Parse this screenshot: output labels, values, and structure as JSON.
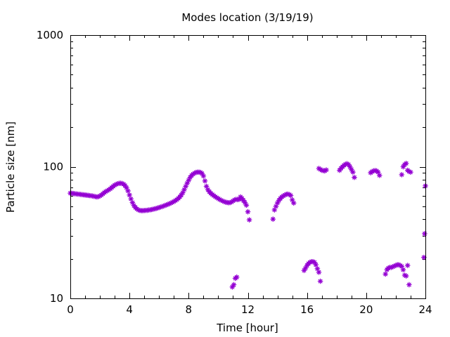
{
  "chart_data": {
    "type": "scatter",
    "title": "Modes location (3/19/19)",
    "xlabel": "Time [hour]",
    "ylabel": "Particle size [nm]",
    "xlim": [
      0,
      24
    ],
    "ylim": [
      10,
      1000
    ],
    "y_scale": "log",
    "x_ticks": [
      0,
      4,
      8,
      12,
      16,
      20,
      24
    ],
    "x_tick_labels": [
      "0",
      "4",
      "8",
      "12",
      "16",
      "20",
      "24"
    ],
    "y_ticks": [
      10,
      100,
      1000
    ],
    "y_tick_labels": [
      "10",
      "100",
      "1000"
    ],
    "marker": "star",
    "color": "#9400d3",
    "grid": false,
    "series": [
      {
        "values": [
          [
            0.0,
            63
          ],
          [
            0.1,
            62.8
          ],
          [
            0.2,
            62.6
          ],
          [
            0.3,
            62.4
          ],
          [
            0.4,
            62.2
          ],
          [
            0.5,
            62
          ],
          [
            0.6,
            61.8
          ],
          [
            0.7,
            61.6
          ],
          [
            0.8,
            61.4
          ],
          [
            0.9,
            61.2
          ],
          [
            1.0,
            61
          ],
          [
            1.1,
            60.8
          ],
          [
            1.2,
            60.6
          ],
          [
            1.3,
            60.4
          ],
          [
            1.4,
            60.2
          ],
          [
            1.5,
            59.9
          ],
          [
            1.6,
            59.6
          ],
          [
            1.7,
            59.3
          ],
          [
            1.8,
            59
          ],
          [
            1.9,
            59.3
          ],
          [
            2.0,
            60
          ],
          [
            2.1,
            61
          ],
          [
            2.2,
            62.3
          ],
          [
            2.3,
            63.6
          ],
          [
            2.4,
            64.8
          ],
          [
            2.5,
            65.8
          ],
          [
            2.6,
            66.8
          ],
          [
            2.7,
            68
          ],
          [
            2.8,
            69.5
          ],
          [
            2.9,
            71
          ],
          [
            3.0,
            72.5
          ],
          [
            3.1,
            73.5
          ],
          [
            3.2,
            74.3
          ],
          [
            3.3,
            74.8
          ],
          [
            3.4,
            74.9
          ],
          [
            3.5,
            74.6
          ],
          [
            3.6,
            73.7
          ],
          [
            3.7,
            72
          ],
          [
            3.8,
            69.2
          ],
          [
            3.9,
            65.5
          ],
          [
            4.0,
            61
          ],
          [
            4.1,
            57
          ],
          [
            4.2,
            53.5
          ],
          [
            4.3,
            50.8
          ],
          [
            4.4,
            49
          ],
          [
            4.5,
            47.8
          ],
          [
            4.6,
            47
          ],
          [
            4.7,
            46.6
          ],
          [
            4.8,
            46.4
          ],
          [
            4.9,
            46.4
          ],
          [
            5.0,
            46.5
          ],
          [
            5.1,
            46.6
          ],
          [
            5.2,
            46.7
          ],
          [
            5.3,
            46.9
          ],
          [
            5.4,
            47.1
          ],
          [
            5.5,
            47.3
          ],
          [
            5.6,
            47.6
          ],
          [
            5.7,
            47.9
          ],
          [
            5.8,
            48.2
          ],
          [
            5.9,
            48.6
          ],
          [
            6.0,
            49
          ],
          [
            6.1,
            49.4
          ],
          [
            6.2,
            49.8
          ],
          [
            6.3,
            50.3
          ],
          [
            6.4,
            50.8
          ],
          [
            6.5,
            51.3
          ],
          [
            6.6,
            51.8
          ],
          [
            6.7,
            52.4
          ],
          [
            6.8,
            53
          ],
          [
            6.9,
            53.7
          ],
          [
            7.0,
            54.4
          ],
          [
            7.1,
            55.3
          ],
          [
            7.2,
            56.3
          ],
          [
            7.3,
            57.5
          ],
          [
            7.4,
            59
          ],
          [
            7.5,
            61
          ],
          [
            7.6,
            63.5
          ],
          [
            7.7,
            67
          ],
          [
            7.8,
            71
          ],
          [
            7.9,
            75
          ],
          [
            8.0,
            79
          ],
          [
            8.1,
            83
          ],
          [
            8.2,
            86
          ],
          [
            8.3,
            88
          ],
          [
            8.4,
            89.5
          ],
          [
            8.5,
            90.5
          ],
          [
            8.6,
            91
          ],
          [
            8.7,
            91
          ],
          [
            8.8,
            90.5
          ],
          [
            8.9,
            89
          ],
          [
            9.0,
            85
          ],
          [
            9.1,
            78
          ],
          [
            9.2,
            71
          ],
          [
            9.3,
            67
          ],
          [
            9.4,
            64.5
          ],
          [
            9.5,
            62.8
          ],
          [
            9.6,
            61.5
          ],
          [
            9.7,
            60.3
          ],
          [
            9.8,
            59.2
          ],
          [
            9.9,
            58.2
          ],
          [
            10.0,
            57.3
          ],
          [
            10.1,
            56.4
          ],
          [
            10.2,
            55.6
          ],
          [
            10.3,
            54.9
          ],
          [
            10.4,
            54.3
          ],
          [
            10.5,
            53.8
          ],
          [
            10.6,
            53.5
          ],
          [
            10.7,
            53.3
          ],
          [
            10.8,
            53.4
          ],
          [
            10.9,
            54
          ],
          [
            11.0,
            55
          ],
          [
            11.1,
            56
          ],
          [
            11.2,
            56.5
          ],
          [
            11.3,
            56.3
          ],
          [
            11.4,
            56.5
          ],
          [
            11.5,
            59
          ],
          [
            11.6,
            57.5
          ],
          [
            11.7,
            55.5
          ],
          [
            11.8,
            53.5
          ],
          [
            11.9,
            51
          ],
          [
            12.0,
            45.5
          ],
          [
            12.1,
            39.5
          ]
        ]
      },
      {
        "values": [
          [
            10.95,
            12.2
          ],
          [
            11.05,
            12.7
          ],
          [
            11.15,
            14.2
          ],
          [
            11.25,
            14.5
          ]
        ]
      },
      {
        "values": [
          [
            13.7,
            40
          ],
          [
            13.8,
            47
          ],
          [
            13.9,
            50
          ],
          [
            14.0,
            53
          ],
          [
            14.1,
            55.5
          ],
          [
            14.2,
            57.5
          ],
          [
            14.3,
            59
          ],
          [
            14.4,
            60
          ],
          [
            14.5,
            61
          ],
          [
            14.6,
            61.8
          ],
          [
            14.7,
            62
          ],
          [
            14.8,
            61.5
          ],
          [
            14.9,
            60.5
          ],
          [
            15.0,
            56
          ],
          [
            15.1,
            53
          ]
        ]
      },
      {
        "values": [
          [
            15.8,
            16.3
          ],
          [
            15.9,
            17
          ],
          [
            16.0,
            17.8
          ],
          [
            16.1,
            18.4
          ],
          [
            16.2,
            18.8
          ],
          [
            16.3,
            19
          ],
          [
            16.4,
            19
          ],
          [
            16.5,
            18.8
          ],
          [
            16.6,
            18
          ],
          [
            16.7,
            16.8
          ],
          [
            16.8,
            15.8
          ],
          [
            16.9,
            13.5
          ]
        ]
      },
      {
        "values": [
          [
            16.8,
            97
          ],
          [
            16.9,
            95.5
          ],
          [
            17.0,
            94
          ],
          [
            17.1,
            93.5
          ],
          [
            17.2,
            93
          ],
          [
            17.3,
            94.5
          ]
        ]
      },
      {
        "values": [
          [
            18.2,
            94
          ],
          [
            18.3,
            97.5
          ],
          [
            18.4,
            100
          ],
          [
            18.5,
            102.5
          ],
          [
            18.6,
            104.5
          ],
          [
            18.7,
            105.5
          ],
          [
            18.8,
            104
          ],
          [
            18.9,
            100
          ],
          [
            19.0,
            95.5
          ],
          [
            19.1,
            91
          ],
          [
            19.2,
            83
          ]
        ]
      },
      {
        "values": [
          [
            20.3,
            90
          ],
          [
            20.4,
            92
          ],
          [
            20.5,
            93
          ],
          [
            20.6,
            93.5
          ],
          [
            20.7,
            93
          ],
          [
            20.8,
            91
          ],
          [
            20.9,
            86
          ]
        ]
      },
      {
        "values": [
          [
            21.3,
            15.3
          ],
          [
            21.4,
            16.5
          ],
          [
            21.5,
            17
          ],
          [
            21.6,
            17.2
          ],
          [
            21.7,
            17.2
          ],
          [
            21.8,
            17.4
          ],
          [
            21.9,
            17.6
          ],
          [
            22.0,
            17.8
          ],
          [
            22.1,
            18
          ],
          [
            22.2,
            18
          ],
          [
            22.3,
            17.8
          ],
          [
            22.4,
            17.5
          ],
          [
            22.5,
            16.5
          ],
          [
            22.6,
            15
          ],
          [
            22.7,
            14.8
          ],
          [
            22.8,
            17.8
          ],
          [
            22.9,
            12.7
          ]
        ]
      },
      {
        "values": [
          [
            22.4,
            87
          ],
          [
            22.5,
            100
          ],
          [
            22.6,
            104
          ],
          [
            22.7,
            106
          ],
          [
            22.8,
            94
          ],
          [
            22.9,
            92
          ],
          [
            23.0,
            91
          ]
        ]
      },
      {
        "values": [
          [
            23.9,
            20.5
          ],
          [
            23.95,
            31
          ],
          [
            24.0,
            71.5
          ]
        ]
      }
    ]
  }
}
